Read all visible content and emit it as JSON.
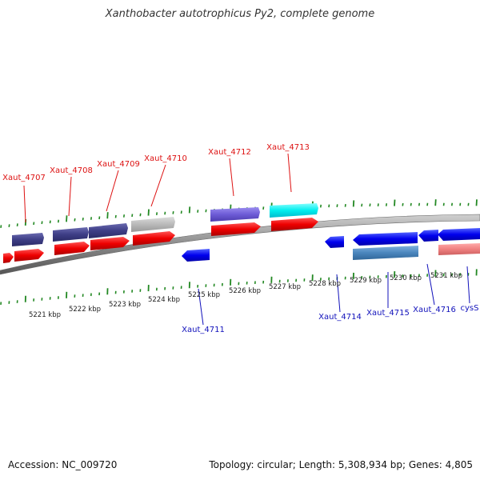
{
  "title": "Xanthobacter autotrophicus Py2, complete genome",
  "footer": {
    "accession": "Accession: NC_009720",
    "summary": "Topology: circular; Length: 5,308,934 bp; Genes: 4,805"
  },
  "colors": {
    "forward_gene": "#ee1111",
    "reverse_gene": "#1111dd",
    "backbone": "#8a8a8a",
    "tick": "#228822",
    "forward_label": "#dd1111",
    "reverse_label": "#1111bb"
  },
  "scale_labels": [
    "5221 kbp",
    "5222 kbp",
    "5223 kbp",
    "5224 kbp",
    "5225 kbp",
    "5226 kbp",
    "5227 kbp",
    "5228 kbp",
    "5229 kbp",
    "5230 kbp",
    "5231 kbp"
  ],
  "gene_labels": {
    "forward": [
      "Xaut_4707",
      "Xaut_4708",
      "Xaut_4709",
      "Xaut_4710",
      "Xaut_4712",
      "Xaut_4713"
    ],
    "reverse": [
      "Xaut_4711",
      "Xaut_4714",
      "Xaut_4715",
      "Xaut_4716",
      "cysS"
    ]
  }
}
